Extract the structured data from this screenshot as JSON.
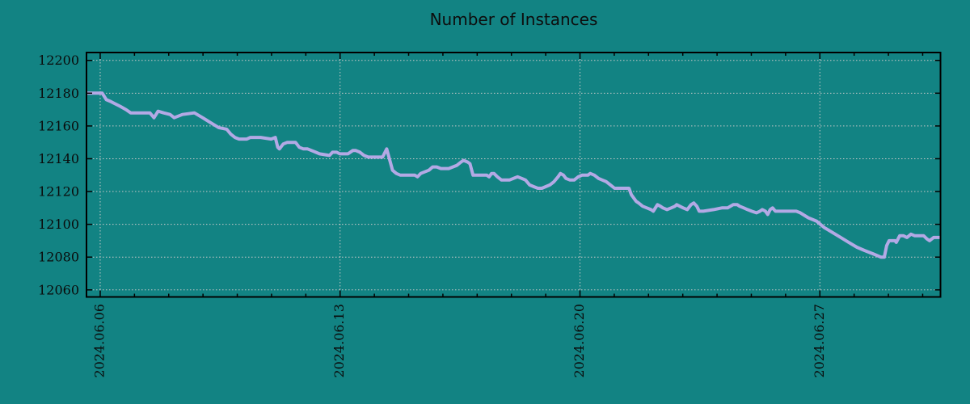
{
  "page": {
    "background_color": "#128383"
  },
  "chart_data": {
    "type": "line",
    "title": "Number of Instances",
    "x_axis": {
      "unit": "date",
      "xlim": [
        5.6,
        30.52
      ],
      "major_ticks": [
        {
          "position": 6,
          "label": "2024.06.06"
        },
        {
          "position": 13,
          "label": "2024.06.13"
        },
        {
          "position": 20,
          "label": "2024.06.20"
        },
        {
          "position": 27,
          "label": "2024.06.27"
        }
      ],
      "minor_tick_positions": [
        7,
        8,
        9,
        10,
        11,
        12,
        14,
        15,
        16,
        17,
        18,
        19,
        21,
        22,
        23,
        24,
        25,
        26,
        28,
        29,
        30
      ],
      "tick_label_rotation_deg": 90
    },
    "y_axis": {
      "ylim": [
        12055.7,
        12204.8
      ],
      "tick_positions": [
        12060,
        12080,
        12100,
        12120,
        12140,
        12160,
        12180,
        12200
      ]
    },
    "grid": {
      "show": true,
      "line_style": "dotted",
      "color": "#c9c9c9"
    },
    "colors": {
      "background": "#128383",
      "line": "#b3a9e5",
      "axis": "#000000",
      "text": "#0a0a0a"
    },
    "legend": {
      "show": false
    },
    "series": [
      {
        "name": "instances",
        "color": "#b3a9e5",
        "points": [
          [
            5.62,
            12180
          ],
          [
            6.06,
            12180
          ],
          [
            6.18,
            12176
          ],
          [
            6.3,
            12175
          ],
          [
            6.39,
            12174
          ],
          [
            6.58,
            12172
          ],
          [
            6.75,
            12170
          ],
          [
            6.89,
            12168
          ],
          [
            7.45,
            12168
          ],
          [
            7.57,
            12165
          ],
          [
            7.69,
            12169
          ],
          [
            7.85,
            12168
          ],
          [
            8.04,
            12167
          ],
          [
            8.16,
            12165
          ],
          [
            8.4,
            12167
          ],
          [
            8.75,
            12168
          ],
          [
            8.99,
            12165
          ],
          [
            9.22,
            12162
          ],
          [
            9.46,
            12159
          ],
          [
            9.69,
            12158
          ],
          [
            9.81,
            12155
          ],
          [
            9.93,
            12153
          ],
          [
            10.05,
            12152
          ],
          [
            10.28,
            12152
          ],
          [
            10.38,
            12153
          ],
          [
            10.68,
            12153
          ],
          [
            10.99,
            12152
          ],
          [
            11.11,
            12153
          ],
          [
            11.18,
            12147
          ],
          [
            11.23,
            12146
          ],
          [
            11.34,
            12149
          ],
          [
            11.46,
            12150
          ],
          [
            11.7,
            12150
          ],
          [
            11.81,
            12147
          ],
          [
            11.93,
            12146
          ],
          [
            12.05,
            12146
          ],
          [
            12.17,
            12145
          ],
          [
            12.29,
            12144
          ],
          [
            12.4,
            12143
          ],
          [
            12.69,
            12142
          ],
          [
            12.78,
            12144
          ],
          [
            12.9,
            12144
          ],
          [
            12.99,
            12143
          ],
          [
            13.13,
            12143
          ],
          [
            13.23,
            12143
          ],
          [
            13.37,
            12145
          ],
          [
            13.46,
            12145
          ],
          [
            13.58,
            12144
          ],
          [
            13.7,
            12142
          ],
          [
            13.82,
            12141
          ],
          [
            13.94,
            12141
          ],
          [
            14.24,
            12141
          ],
          [
            14.36,
            12146
          ],
          [
            14.53,
            12133
          ],
          [
            14.64,
            12131
          ],
          [
            14.76,
            12130
          ],
          [
            15.18,
            12130
          ],
          [
            15.26,
            12129
          ],
          [
            15.35,
            12131
          ],
          [
            15.59,
            12133
          ],
          [
            15.7,
            12135
          ],
          [
            15.82,
            12135
          ],
          [
            15.94,
            12134
          ],
          [
            16.06,
            12134
          ],
          [
            16.17,
            12134
          ],
          [
            16.29,
            12135
          ],
          [
            16.41,
            12136
          ],
          [
            16.53,
            12138
          ],
          [
            16.6,
            12139
          ],
          [
            16.72,
            12138
          ],
          [
            16.79,
            12137
          ],
          [
            16.88,
            12130
          ],
          [
            17.28,
            12130
          ],
          [
            17.35,
            12129
          ],
          [
            17.42,
            12131
          ],
          [
            17.49,
            12131
          ],
          [
            17.59,
            12129
          ],
          [
            17.71,
            12127
          ],
          [
            17.82,
            12127
          ],
          [
            17.94,
            12127
          ],
          [
            18.06,
            12128
          ],
          [
            18.18,
            12129
          ],
          [
            18.3,
            12128
          ],
          [
            18.41,
            12127
          ],
          [
            18.53,
            12124
          ],
          [
            18.65,
            12123
          ],
          [
            18.77,
            12122
          ],
          [
            18.89,
            12122
          ],
          [
            19.0,
            12123
          ],
          [
            19.12,
            12124
          ],
          [
            19.24,
            12126
          ],
          [
            19.36,
            12129
          ],
          [
            19.43,
            12131
          ],
          [
            19.52,
            12130
          ],
          [
            19.59,
            12128
          ],
          [
            19.71,
            12127
          ],
          [
            19.83,
            12127
          ],
          [
            19.95,
            12129
          ],
          [
            20.06,
            12130
          ],
          [
            20.23,
            12130
          ],
          [
            20.3,
            12131
          ],
          [
            20.42,
            12130
          ],
          [
            20.54,
            12128
          ],
          [
            20.65,
            12127
          ],
          [
            20.77,
            12126
          ],
          [
            20.89,
            12124
          ],
          [
            21.01,
            12122
          ],
          [
            21.12,
            12122
          ],
          [
            21.36,
            12122
          ],
          [
            21.43,
            12122
          ],
          [
            21.5,
            12118
          ],
          [
            21.57,
            12116
          ],
          [
            21.64,
            12114
          ],
          [
            21.71,
            12113
          ],
          [
            21.83,
            12111
          ],
          [
            21.95,
            12110
          ],
          [
            22.07,
            12109
          ],
          [
            22.14,
            12108
          ],
          [
            22.26,
            12112
          ],
          [
            22.35,
            12111
          ],
          [
            22.42,
            12110
          ],
          [
            22.54,
            12109
          ],
          [
            22.66,
            12110
          ],
          [
            22.77,
            12111
          ],
          [
            22.82,
            12112
          ],
          [
            23.01,
            12110
          ],
          [
            23.13,
            12109
          ],
          [
            23.24,
            12112
          ],
          [
            23.32,
            12113
          ],
          [
            23.41,
            12111
          ],
          [
            23.48,
            12108
          ],
          [
            23.6,
            12108
          ],
          [
            23.9,
            12109
          ],
          [
            24.14,
            12110
          ],
          [
            24.31,
            12110
          ],
          [
            24.47,
            12112
          ],
          [
            24.59,
            12112
          ],
          [
            24.66,
            12111
          ],
          [
            24.78,
            12110
          ],
          [
            24.89,
            12109
          ],
          [
            25.01,
            12108
          ],
          [
            25.15,
            12107
          ],
          [
            25.25,
            12108
          ],
          [
            25.32,
            12109
          ],
          [
            25.41,
            12108
          ],
          [
            25.48,
            12106
          ],
          [
            25.55,
            12109
          ],
          [
            25.62,
            12110
          ],
          [
            25.7,
            12108
          ],
          [
            25.79,
            12108
          ],
          [
            26.19,
            12108
          ],
          [
            26.31,
            12108
          ],
          [
            26.43,
            12107
          ],
          [
            26.66,
            12104
          ],
          [
            26.9,
            12102
          ],
          [
            27.13,
            12098
          ],
          [
            27.37,
            12095
          ],
          [
            27.61,
            12092
          ],
          [
            27.84,
            12089
          ],
          [
            28.08,
            12086
          ],
          [
            28.31,
            12084
          ],
          [
            28.55,
            12082
          ],
          [
            28.78,
            12080
          ],
          [
            28.88,
            12080
          ],
          [
            28.95,
            12087
          ],
          [
            29.02,
            12090
          ],
          [
            29.19,
            12090
          ],
          [
            29.23,
            12089
          ],
          [
            29.33,
            12093
          ],
          [
            29.44,
            12093
          ],
          [
            29.54,
            12092
          ],
          [
            29.66,
            12094
          ],
          [
            29.77,
            12093
          ],
          [
            30.03,
            12093
          ],
          [
            30.13,
            12091
          ],
          [
            30.2,
            12090
          ],
          [
            30.32,
            12092
          ],
          [
            30.5,
            12092
          ]
        ]
      }
    ]
  }
}
